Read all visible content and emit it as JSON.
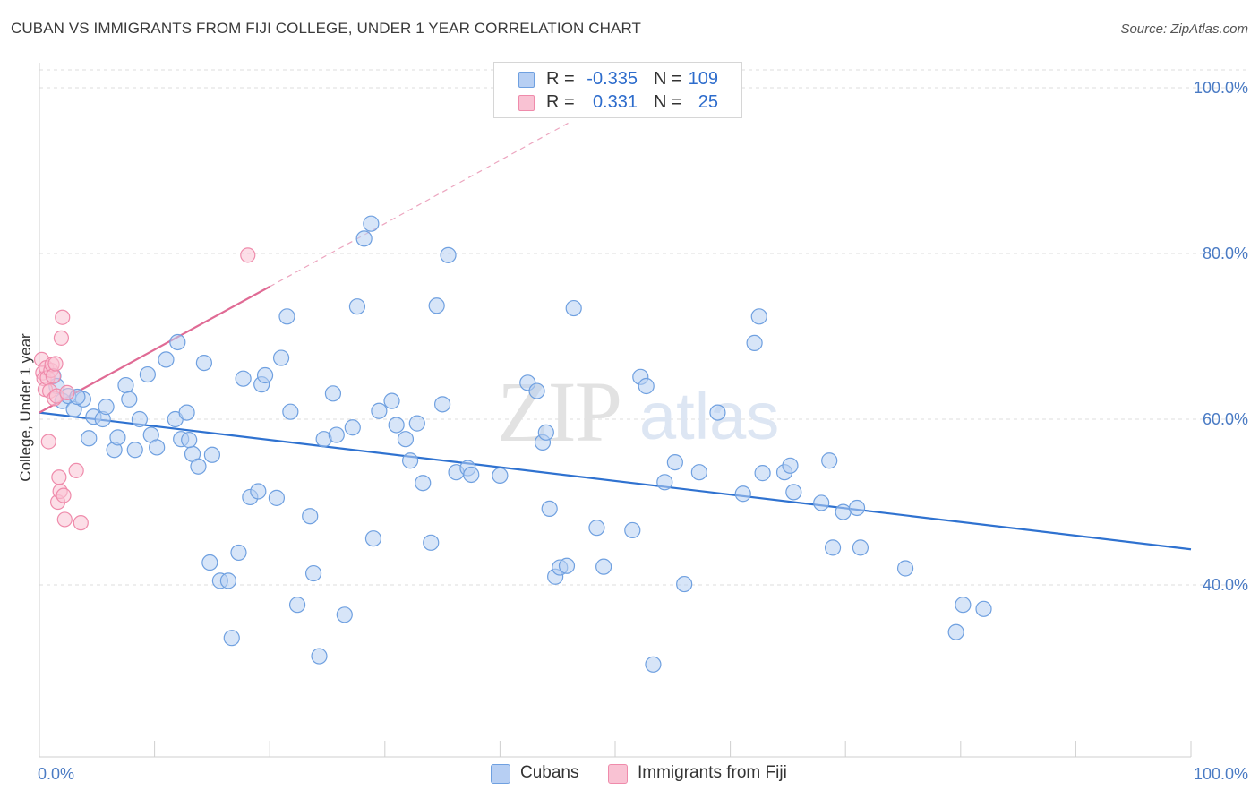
{
  "header": {
    "title": "CUBAN VS IMMIGRANTS FROM FIJI COLLEGE, UNDER 1 YEAR CORRELATION CHART",
    "source": "Source: ZipAtlas.com"
  },
  "watermark": {
    "zip": "ZIP",
    "atlas": "atlas"
  },
  "colors": {
    "blue": "#6fa0e0",
    "blue_fill": "#b7cff3",
    "blue_line": "#2f72d0",
    "pink": "#ef8bab",
    "pink_fill": "#f9c2d3",
    "pink_line": "#e06b95",
    "tick": "#4a7bc4",
    "grid": "#dcdcdc"
  },
  "legend": {
    "rows": [
      {
        "r_label": "R =",
        "r_value": "-0.335",
        "n_label": "N =",
        "n_value": "109"
      },
      {
        "r_label": "R =",
        "r_value": "0.331",
        "n_label": "N =",
        "n_value": "25"
      }
    ]
  },
  "bottom_legend": {
    "series1": "Cubans",
    "series2": "Immigrants from Fiji"
  },
  "chart_data": {
    "type": "scatter",
    "title": "CUBAN VS IMMIGRANTS FROM FIJI COLLEGE, UNDER 1 YEAR CORRELATION CHART",
    "xlabel": "",
    "ylabel": "College, Under 1 year",
    "xlim": [
      0,
      100
    ],
    "ylim": [
      20,
      103
    ],
    "x_ticks": [
      0,
      100
    ],
    "x_tick_labels": [
      "0.0%",
      "100.0%"
    ],
    "y_ticks": [
      40,
      60,
      80,
      100
    ],
    "y_tick_labels": [
      "40.0%",
      "60.0%",
      "80.0%",
      "100.0%"
    ],
    "grid": true,
    "legend_position": "top-center",
    "series": [
      {
        "name": "Cubans",
        "color": "#6fa0e0",
        "trend": {
          "x": [
            0,
            100
          ],
          "y": [
            60.8,
            44.3
          ]
        },
        "points": [
          [
            1.2,
            65.2
          ],
          [
            1.5,
            64.0
          ],
          [
            2.0,
            62.2
          ],
          [
            2.5,
            62.8
          ],
          [
            3.0,
            61.2
          ],
          [
            3.8,
            62.4
          ],
          [
            4.3,
            57.7
          ],
          [
            4.7,
            60.3
          ],
          [
            5.5,
            60.0
          ],
          [
            5.8,
            61.5
          ],
          [
            6.5,
            56.3
          ],
          [
            6.8,
            57.8
          ],
          [
            7.5,
            64.1
          ],
          [
            7.8,
            62.4
          ],
          [
            8.3,
            56.3
          ],
          [
            8.7,
            60.0
          ],
          [
            9.4,
            65.4
          ],
          [
            9.7,
            58.1
          ],
          [
            10.2,
            56.6
          ],
          [
            11.0,
            67.2
          ],
          [
            11.8,
            60.0
          ],
          [
            12.0,
            69.3
          ],
          [
            12.3,
            57.6
          ],
          [
            12.8,
            60.8
          ],
          [
            13.3,
            55.8
          ],
          [
            13.8,
            54.3
          ],
          [
            14.3,
            66.8
          ],
          [
            15.0,
            55.7
          ],
          [
            14.8,
            42.7
          ],
          [
            15.7,
            40.5
          ],
          [
            16.4,
            40.5
          ],
          [
            16.7,
            33.6
          ],
          [
            17.3,
            43.9
          ],
          [
            17.7,
            64.9
          ],
          [
            18.3,
            50.6
          ],
          [
            19.0,
            51.3
          ],
          [
            19.3,
            64.2
          ],
          [
            19.6,
            65.3
          ],
          [
            20.6,
            50.5
          ],
          [
            21.0,
            67.4
          ],
          [
            21.5,
            72.4
          ],
          [
            21.8,
            60.9
          ],
          [
            22.4,
            37.6
          ],
          [
            23.5,
            48.3
          ],
          [
            23.8,
            41.4
          ],
          [
            24.3,
            31.4
          ],
          [
            24.7,
            57.6
          ],
          [
            25.5,
            63.1
          ],
          [
            25.8,
            58.1
          ],
          [
            26.5,
            36.4
          ],
          [
            27.2,
            59.0
          ],
          [
            27.6,
            73.6
          ],
          [
            28.2,
            81.8
          ],
          [
            28.8,
            83.6
          ],
          [
            29.0,
            45.6
          ],
          [
            29.5,
            61.0
          ],
          [
            30.6,
            62.2
          ],
          [
            31.0,
            59.3
          ],
          [
            31.8,
            57.6
          ],
          [
            32.2,
            55.0
          ],
          [
            32.8,
            59.5
          ],
          [
            33.3,
            52.3
          ],
          [
            34.0,
            45.1
          ],
          [
            34.5,
            73.7
          ],
          [
            35.0,
            61.8
          ],
          [
            35.5,
            79.8
          ],
          [
            36.2,
            53.6
          ],
          [
            37.2,
            54.1
          ],
          [
            37.5,
            53.3
          ],
          [
            40.0,
            53.2
          ],
          [
            42.4,
            64.4
          ],
          [
            43.2,
            63.4
          ],
          [
            43.7,
            57.2
          ],
          [
            44.0,
            58.4
          ],
          [
            44.3,
            49.2
          ],
          [
            44.8,
            41.0
          ],
          [
            45.2,
            42.1
          ],
          [
            45.8,
            42.3
          ],
          [
            46.4,
            73.4
          ],
          [
            48.4,
            46.9
          ],
          [
            49.0,
            42.2
          ],
          [
            51.5,
            46.6
          ],
          [
            52.2,
            65.1
          ],
          [
            52.7,
            64.0
          ],
          [
            53.3,
            30.4
          ],
          [
            54.3,
            52.4
          ],
          [
            55.2,
            54.8
          ],
          [
            56.0,
            40.1
          ],
          [
            57.3,
            53.6
          ],
          [
            58.9,
            60.8
          ],
          [
            61.1,
            51.0
          ],
          [
            62.1,
            69.2
          ],
          [
            62.5,
            72.4
          ],
          [
            62.8,
            53.5
          ],
          [
            64.7,
            53.6
          ],
          [
            65.2,
            54.4
          ],
          [
            65.5,
            51.2
          ],
          [
            67.9,
            49.9
          ],
          [
            68.6,
            55.0
          ],
          [
            68.9,
            44.5
          ],
          [
            69.8,
            48.8
          ],
          [
            71.0,
            49.3
          ],
          [
            71.3,
            44.5
          ],
          [
            75.2,
            42.0
          ],
          [
            79.6,
            34.3
          ],
          [
            80.2,
            37.6
          ],
          [
            82.0,
            37.1
          ],
          [
            3.3,
            62.7
          ],
          [
            13.0,
            57.5
          ]
        ]
      },
      {
        "name": "Immigrants from Fiji",
        "color": "#ef8bab",
        "trend": {
          "x": [
            0,
            20
          ],
          "y": [
            60.8,
            76.0
          ]
        },
        "trend_extended": {
          "x": [
            20,
            46
          ],
          "y": [
            76.0,
            95.8
          ]
        },
        "points": [
          [
            0.2,
            67.2
          ],
          [
            0.3,
            65.6
          ],
          [
            0.4,
            64.9
          ],
          [
            0.5,
            63.6
          ],
          [
            0.6,
            66.2
          ],
          [
            0.7,
            65.0
          ],
          [
            0.8,
            57.3
          ],
          [
            0.9,
            63.4
          ],
          [
            1.0,
            65.9
          ],
          [
            1.1,
            66.6
          ],
          [
            1.2,
            65.2
          ],
          [
            1.3,
            62.5
          ],
          [
            1.4,
            66.7
          ],
          [
            1.5,
            62.8
          ],
          [
            1.6,
            50.0
          ],
          [
            1.7,
            53.0
          ],
          [
            1.8,
            51.3
          ],
          [
            1.9,
            69.8
          ],
          [
            2.0,
            72.3
          ],
          [
            2.1,
            50.8
          ],
          [
            2.2,
            47.9
          ],
          [
            2.4,
            63.2
          ],
          [
            3.2,
            53.8
          ],
          [
            3.6,
            47.5
          ],
          [
            18.1,
            79.8
          ]
        ]
      }
    ]
  }
}
